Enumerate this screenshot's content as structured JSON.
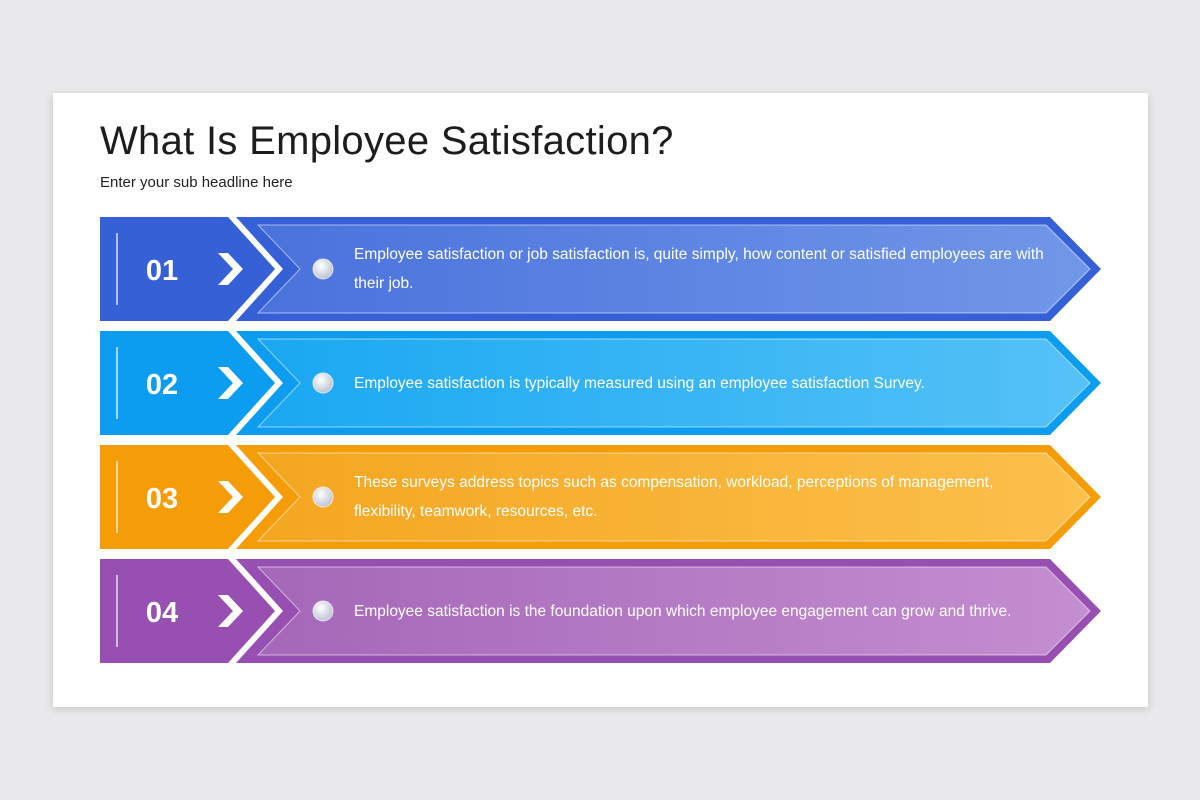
{
  "header": {
    "title": "What Is Employee Satisfaction?",
    "subtitle": "Enter your sub headline here"
  },
  "items": [
    {
      "number": "01",
      "text": "Employee satisfaction or job satisfaction is, quite simply, how content or satisfied employees are with their job."
    },
    {
      "number": "02",
      "text": "Employee satisfaction is typically measured using an employee satisfaction Survey."
    },
    {
      "number": "03",
      "text": "These surveys address topics such as compensation, workload, perceptions of management, flexibility, teamwork, resources, etc."
    },
    {
      "number": "04",
      "text": "Employee satisfaction is the foundation upon which employee engagement can grow and thrive."
    }
  ]
}
